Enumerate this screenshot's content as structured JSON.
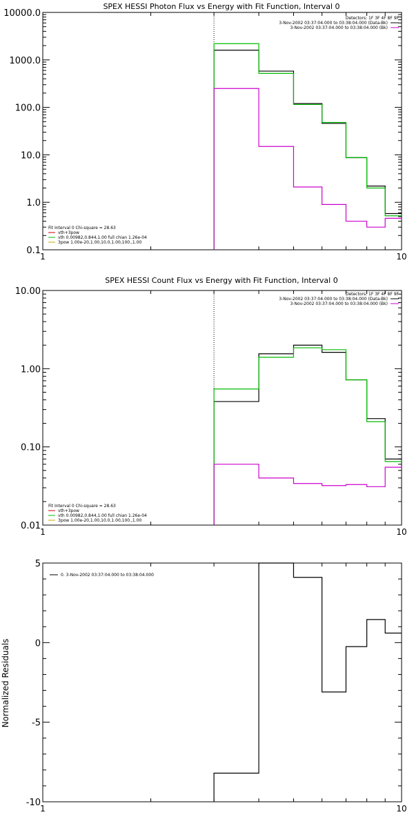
{
  "chart_data": [
    {
      "type": "line",
      "title": "SPEX HESSI Photon Flux vs Energy with Fit Function, Interval 0",
      "xlabel": "",
      "ylabel": "",
      "x_scale": "log",
      "y_scale": "log",
      "xlim": [
        1,
        10
      ],
      "ylim": [
        0.1,
        10000
      ],
      "xticks": [
        {
          "v": 1,
          "label": "1"
        },
        {
          "v": 10,
          "label": "10"
        }
      ],
      "yticks": [
        {
          "v": 0.1,
          "label": "0.1"
        },
        {
          "v": 1,
          "label": "1.0"
        },
        {
          "v": 10,
          "label": "10.0"
        },
        {
          "v": 100,
          "label": "100.0"
        },
        {
          "v": 1000,
          "label": "1000.0"
        },
        {
          "v": 10000,
          "label": "10000.0"
        }
      ],
      "vline": 3,
      "info": {
        "detectors": "Detectors: 1F 3F 4F 8F 9F",
        "lines": [
          {
            "text": "3-Nov-2002 03:37:04.000 to 03:38:04.000 (Data-Bk)",
            "color": "#000000"
          },
          {
            "text": "3-Nov-2002 03:37:04.000 to 03:38:04.000 (Bk)",
            "color": "#cc00cc"
          }
        ]
      },
      "legend": {
        "position": "bottom-left",
        "header": "Fit Interval  0    Chi-square = 28.63",
        "items": [
          {
            "text": "vth+3pow",
            "color": "#cc0000"
          },
          {
            "text": "vth 0.00982,0.844,1.00  full chian 1.26e-04",
            "color": "#00bb00"
          },
          {
            "text": "3pow 1.00e-20,1.00,10.0,1.00,100.,1.00",
            "color": "#ccaa00"
          }
        ]
      },
      "series": [
        {
          "color": "#000000",
          "edges": [
            3,
            4,
            5,
            6,
            7,
            8,
            9,
            10
          ],
          "values": [
            1600,
            580,
            120,
            46,
            8.7,
            2.2,
            0.58
          ]
        },
        {
          "color": "#00bb00",
          "edges": [
            3,
            4,
            5,
            6,
            7,
            8,
            9,
            10
          ],
          "values": [
            2200,
            520,
            115,
            48,
            8.8,
            2.0,
            0.52
          ]
        },
        {
          "color": "#cc00cc",
          "edges": [
            3,
            4,
            5,
            6,
            7,
            8,
            9,
            10
          ],
          "values": [
            250,
            15,
            2.1,
            0.9,
            0.4,
            0.3,
            0.46
          ]
        }
      ]
    },
    {
      "type": "line",
      "title": "SPEX HESSI Count Flux vs Energy with Fit Function, Interval 0",
      "xlabel": "",
      "ylabel": "",
      "x_scale": "log",
      "y_scale": "log",
      "xlim": [
        1,
        10
      ],
      "ylim": [
        0.01,
        10
      ],
      "xticks": [
        {
          "v": 1,
          "label": "1"
        },
        {
          "v": 10,
          "label": "10"
        }
      ],
      "yticks": [
        {
          "v": 0.01,
          "label": "0.01"
        },
        {
          "v": 0.1,
          "label": "0.10"
        },
        {
          "v": 1,
          "label": "1.00"
        },
        {
          "v": 10,
          "label": "10.00"
        }
      ],
      "vline": 3,
      "info": {
        "detectors": "Detectors: 1F 3F 4F 8F 9F",
        "lines": [
          {
            "text": "3-Nov-2002 03:37:04.000 to 03:38:04.000 (Data-Bk)",
            "color": "#000000"
          },
          {
            "text": "3-Nov-2002 03:37:04.000 to 03:38:04.000 (Bk)",
            "color": "#cc00cc"
          }
        ]
      },
      "legend": {
        "position": "bottom-left",
        "header": "Fit Interval  0    Chi-square = 28.63",
        "items": [
          {
            "text": "vth+3pow",
            "color": "#cc0000"
          },
          {
            "text": "vth 0.00982,0.844,1.00  full chian 1.26e-04",
            "color": "#00bb00"
          },
          {
            "text": "3pow 1.00e-20,1.00,10.0,1.00,100.,1.00",
            "color": "#ccaa00"
          }
        ]
      },
      "series": [
        {
          "color": "#000000",
          "edges": [
            3,
            4,
            5,
            6,
            7,
            8,
            9,
            10
          ],
          "values": [
            0.38,
            1.55,
            2.0,
            1.62,
            0.72,
            0.23,
            0.07
          ]
        },
        {
          "color": "#00bb00",
          "edges": [
            3,
            4,
            5,
            6,
            7,
            8,
            9,
            10
          ],
          "values": [
            0.55,
            1.4,
            1.85,
            1.75,
            0.72,
            0.21,
            0.065
          ]
        },
        {
          "color": "#cc00cc",
          "edges": [
            3,
            4,
            5,
            6,
            7,
            8,
            9,
            10
          ],
          "values": [
            0.06,
            0.04,
            0.034,
            0.032,
            0.033,
            0.031,
            0.055
          ]
        }
      ]
    },
    {
      "type": "line",
      "title": "",
      "xlabel": "",
      "ylabel": "Normalized Residuals",
      "x_scale": "log",
      "y_scale": "linear",
      "xlim": [
        1,
        10
      ],
      "ylim": [
        -10,
        5
      ],
      "xticks": [
        {
          "v": 1,
          "label": "1"
        },
        {
          "v": 10,
          "label": "10"
        }
      ],
      "yticks": [
        {
          "v": -10,
          "label": "-10"
        },
        {
          "v": -5,
          "label": "-5"
        },
        {
          "v": 0,
          "label": "0"
        },
        {
          "v": 5,
          "label": "5"
        }
      ],
      "legend": {
        "position": "top-left",
        "items": [
          {
            "text": "0.  3-Nov-2002 03:37:04.000 to 03:38:04.000",
            "color": "#000000"
          }
        ]
      },
      "series": [
        {
          "color": "#000000",
          "edges": [
            3,
            4,
            5,
            6,
            7,
            8,
            9,
            10
          ],
          "values": [
            -8.2,
            5.0,
            4.1,
            -3.1,
            -0.25,
            1.45,
            0.6
          ]
        }
      ]
    }
  ]
}
